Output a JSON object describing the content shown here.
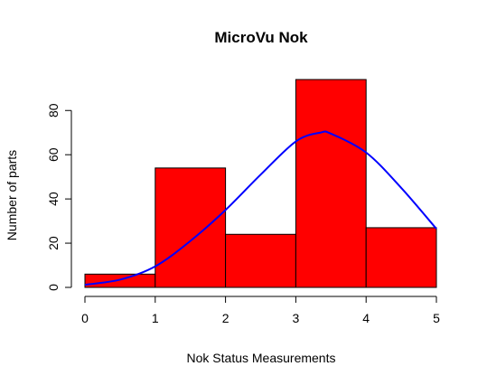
{
  "chart_data": {
    "type": "bar",
    "title": "MicroVu Nok",
    "xlabel": "Nok Status Measurements",
    "ylabel": "Number of parts",
    "bins": [
      {
        "from": 0,
        "to": 1,
        "value": 6
      },
      {
        "from": 1,
        "to": 2,
        "value": 54
      },
      {
        "from": 2,
        "to": 3,
        "value": 24
      },
      {
        "from": 3,
        "to": 4,
        "value": 94
      },
      {
        "from": 4,
        "to": 5,
        "value": 27
      }
    ],
    "x_ticks": [
      0,
      1,
      2,
      3,
      4,
      5
    ],
    "y_ticks": [
      0,
      20,
      40,
      60,
      80
    ],
    "xlim": [
      0,
      5
    ],
    "ylim": [
      0,
      94
    ],
    "bar_color": "#ff0000",
    "bar_border_color": "#000000",
    "curve": {
      "type": "normal-density",
      "color": "#0000ff",
      "points": [
        [
          0,
          1.2
        ],
        [
          0.5,
          3.5
        ],
        [
          1,
          9.5
        ],
        [
          1.5,
          21
        ],
        [
          2,
          35
        ],
        [
          2.5,
          51
        ],
        [
          3,
          66
        ],
        [
          3.35,
          70
        ],
        [
          3.5,
          69.5
        ],
        [
          4,
          61
        ],
        [
          4.5,
          45
        ],
        [
          5,
          26.5
        ]
      ]
    },
    "grid": false,
    "legend": "none"
  }
}
